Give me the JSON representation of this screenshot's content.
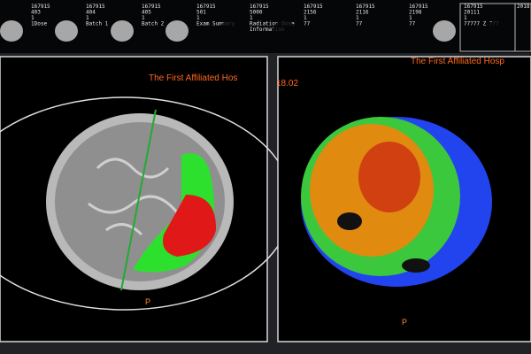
{
  "thumbnails": [
    {
      "lines": [
        "167915",
        "403",
        "1",
        "1Dose"
      ]
    },
    {
      "lines": [
        "167915",
        "404",
        "1",
        "Batch 1"
      ]
    },
    {
      "lines": [
        "167915",
        "405",
        "1",
        "Batch 2"
      ]
    },
    {
      "lines": [
        "167915",
        "501",
        "1",
        "Exam Summary"
      ]
    },
    {
      "lines": [
        "167915",
        "5000",
        "1",
        "Radiation Dose",
        "Information"
      ]
    },
    {
      "lines": [
        "167915",
        "2156",
        "1",
        "77"
      ]
    },
    {
      "lines": [
        "167915",
        "2116",
        "1",
        "77"
      ]
    },
    {
      "lines": [
        "167915",
        "2198",
        "1",
        "77"
      ]
    },
    {
      "lines": [
        "167915",
        "20111",
        "1",
        "77777 Z 777"
      ]
    },
    {
      "lines": [
        "2018"
      ]
    }
  ],
  "viewports": [
    {
      "header": "The First Affiliated Hos",
      "extra": "18.02",
      "orientation": "P"
    },
    {
      "header": "The First Affiliated Hosp",
      "orientation": "P"
    }
  ]
}
